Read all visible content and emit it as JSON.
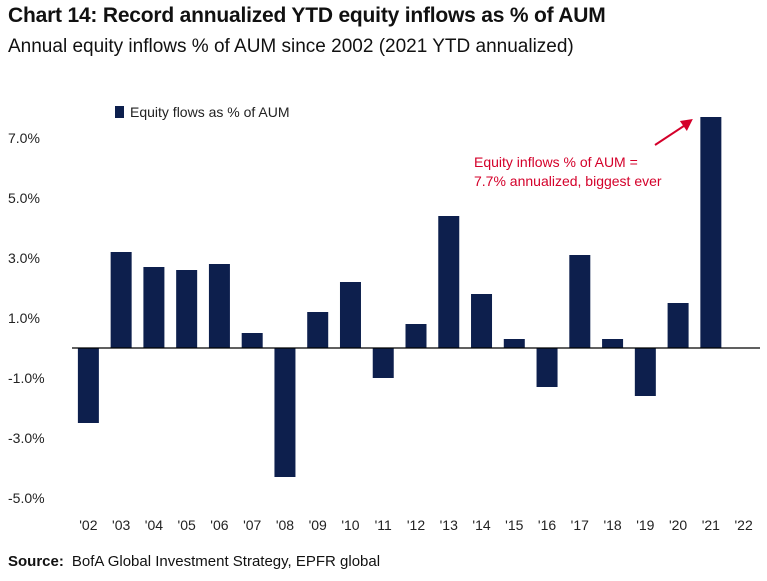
{
  "header": {
    "title": "Chart 14: Record annualized YTD equity inflows as % of AUM",
    "subtitle": "Annual equity inflows % of AUM since 2002 (2021 YTD annualized)"
  },
  "footer": {
    "source_label": "Source:",
    "source_text": "BofA Global Investment Strategy, EPFR global"
  },
  "colors": {
    "bar": "#0d1f4d",
    "annotation": "#d4002a",
    "axis": "#000000"
  },
  "chart_data": {
    "type": "bar",
    "title": "",
    "xlabel": "",
    "ylabel": "",
    "categories": [
      "'02",
      "'03",
      "'04",
      "'05",
      "'06",
      "'07",
      "'08",
      "'09",
      "'10",
      "'11",
      "'12",
      "'13",
      "'14",
      "'15",
      "'16",
      "'17",
      "'18",
      "'19",
      "'20",
      "'21",
      "'22"
    ],
    "series": [
      {
        "name": "Equity flows as % of AUM",
        "values": [
          -2.5,
          3.2,
          2.7,
          2.6,
          2.8,
          0.5,
          -4.3,
          1.2,
          2.2,
          -1.0,
          0.8,
          4.4,
          1.8,
          0.3,
          -1.3,
          3.1,
          0.3,
          -1.6,
          1.5,
          7.7,
          null
        ]
      }
    ],
    "y_ticks": [
      "7.0%",
      "5.0%",
      "3.0%",
      "1.0%",
      "-1.0%",
      "-3.0%",
      "-5.0%"
    ],
    "y_tick_values": [
      7,
      5,
      3,
      1,
      -1,
      -3,
      -5
    ],
    "ylim": [
      -5,
      7.7
    ],
    "grid": false,
    "legend": {
      "position": "top-left",
      "entries": [
        "Equity flows as % of AUM"
      ]
    },
    "annotation": {
      "lines": [
        "Equity inflows % of AUM =",
        "7.7% annualized, biggest ever"
      ],
      "target_category": "'21"
    }
  }
}
